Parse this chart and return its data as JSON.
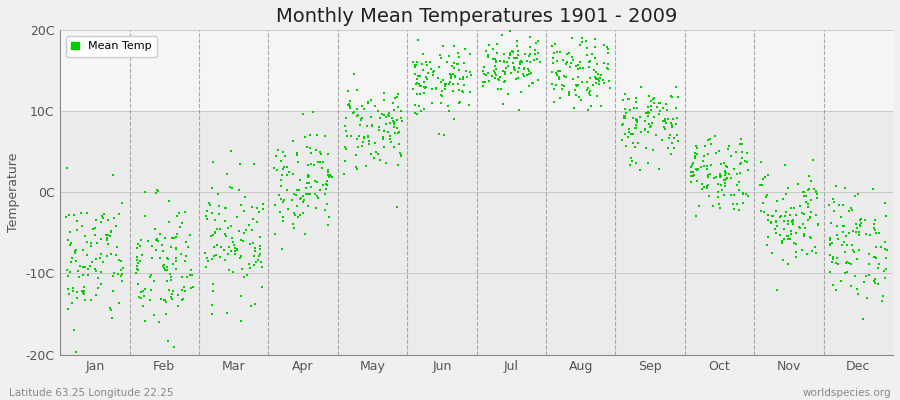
{
  "title": "Monthly Mean Temperatures 1901 - 2009",
  "ylabel": "Temperature",
  "ylim": [
    -20,
    20
  ],
  "yticks": [
    -20,
    -10,
    0,
    10,
    20
  ],
  "ytick_labels": [
    "-20C",
    "-10C",
    "0C",
    "10C",
    "20C"
  ],
  "months": [
    "Jan",
    "Feb",
    "Mar",
    "Apr",
    "May",
    "Jun",
    "Jul",
    "Aug",
    "Sep",
    "Oct",
    "Nov",
    "Dec"
  ],
  "month_means": [
    -8.5,
    -9.5,
    -5.5,
    1.5,
    8.0,
    13.5,
    16.0,
    14.5,
    8.5,
    2.5,
    -3.0,
    -6.5
  ],
  "month_stds": [
    4.2,
    4.5,
    3.8,
    3.2,
    2.8,
    2.2,
    2.0,
    2.2,
    2.5,
    2.5,
    3.2,
    3.5
  ],
  "n_years": 109,
  "marker_color": "#00CC00",
  "marker_size": 4,
  "plot_bg_color": "#EBEBEB",
  "fig_bg_color": "#F0F0F0",
  "grid_color": "#888888",
  "title_fontsize": 14,
  "axis_fontsize": 9,
  "tick_fontsize": 9,
  "legend_label": "Mean Temp",
  "bottom_left": "Latitude 63.25 Longitude 22.25",
  "bottom_right": "worldspecies.org",
  "seed": 42
}
